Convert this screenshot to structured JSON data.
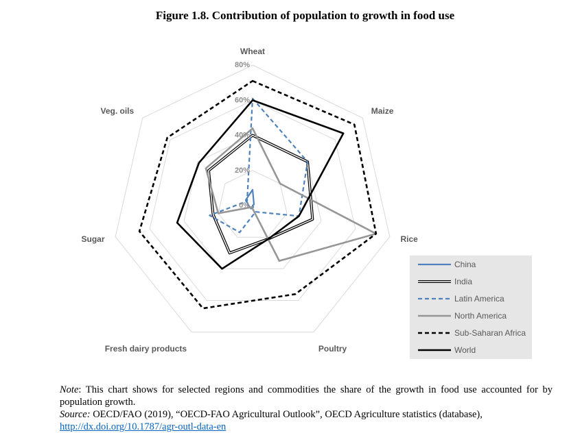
{
  "figure": {
    "title": "Figure 1.8. Contribution of population to growth in food use"
  },
  "chart_data": {
    "type": "radar",
    "title": "Figure 1.8. Contribution of population to growth in food use",
    "axes": [
      "Wheat",
      "Maize",
      "Rice",
      "Poultry",
      "Fresh dairy products",
      "Sugar",
      "Veg. oils"
    ],
    "ticks": [
      "0%",
      "20%",
      "40%",
      "60%",
      "80%"
    ],
    "range": [
      0,
      80
    ],
    "grid": true,
    "legend_position": "bottom-right",
    "series": [
      {
        "name": "China",
        "color": "#4f81bd",
        "dash": "solid",
        "width": 2.2,
        "values": [
          9,
          1,
          0,
          1,
          2,
          2,
          5
        ]
      },
      {
        "name": "India",
        "color": "#000000",
        "dash": "double",
        "width": 1.2,
        "values": [
          40,
          40,
          35,
          21,
          30,
          23,
          32
        ]
      },
      {
        "name": "Latin America",
        "color": "#4f81bd",
        "dash": "dashed",
        "width": 2.2,
        "values": [
          61,
          40,
          27,
          4,
          17,
          25,
          4
        ]
      },
      {
        "name": "North America",
        "color": "#969696",
        "dash": "solid",
        "width": 2.6,
        "values": [
          44,
          20,
          72,
          35,
          1,
          20,
          34
        ]
      },
      {
        "name": "Sub-Saharan Africa",
        "color": "#000000",
        "dash": "dashed",
        "width": 2.6,
        "values": [
          71,
          74,
          72,
          56,
          65,
          66,
          62
        ]
      },
      {
        "name": "World",
        "color": "#000000",
        "dash": "solid",
        "width": 2.6,
        "values": [
          60,
          66,
          27,
          21,
          40,
          44,
          39
        ]
      }
    ]
  },
  "notes": {
    "note_label": "Note",
    "note_text": ": This chart shows for selected regions and commodities the share of the growth in food use accounted for by population growth.",
    "source_label": "Source:",
    "source_text": " OECD/FAO (2019), “OECD-FAO Agricultural Outlook”, OECD Agriculture statistics (database),",
    "link_text": "http://dx.doi.org/10.1787/agr-outl-data-en"
  }
}
